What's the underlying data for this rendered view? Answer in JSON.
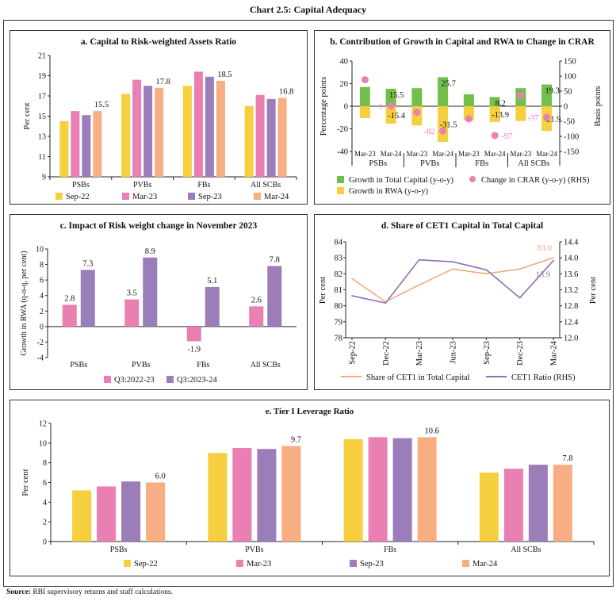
{
  "page": {
    "title": "Chart 2.5: Capital Adequacy",
    "source_label": "Source:",
    "source_text": " RBI supervisory returns and staff calculations."
  },
  "chart_data": [
    {
      "type": "bar",
      "title": "a. Capital to Risk-weighted Assets Ratio",
      "xlabel": "",
      "ylabel": "Per cent",
      "ylim": [
        9,
        21
      ],
      "yticks": [
        9,
        11,
        13,
        15,
        17,
        19,
        21
      ],
      "categories": [
        "PSBs",
        "PVBs",
        "FBs",
        "All SCBs"
      ],
      "legend_position": "bottom",
      "series": [
        {
          "name": "Sep-22",
          "color": "#f5cf3d",
          "values": [
            14.5,
            17.2,
            18.0,
            16.0
          ]
        },
        {
          "name": "Mar-23",
          "color": "#e97fb2",
          "values": [
            15.5,
            18.6,
            19.4,
            17.1
          ]
        },
        {
          "name": "Sep-23",
          "color": "#9b7db9",
          "values": [
            15.1,
            18.0,
            18.9,
            16.7
          ]
        },
        {
          "name": "Mar-24",
          "color": "#f7ae82",
          "values": [
            15.5,
            17.8,
            18.5,
            16.8
          ],
          "labels": [
            "15.5",
            "17.8",
            "18.5",
            "16.8"
          ]
        }
      ]
    },
    {
      "type": "bar",
      "title": "b. Contribution of Growth in Capital and RWA to Change in CRAR",
      "ylabel": "Percentage points",
      "y2label": "Basis points",
      "ylim": [
        -40,
        40
      ],
      "yticks": [
        -40,
        -20,
        0,
        20,
        40
      ],
      "y2lim": [
        -150,
        150
      ],
      "y2ticks": [
        -150,
        -100,
        -50,
        0,
        50,
        100,
        150
      ],
      "groups": [
        "PSBs",
        "PVBs",
        "FBs",
        "All SCBs"
      ],
      "periods": [
        "Mar-23",
        "Mar-24",
        "Mar-23",
        "Mar-24",
        "Mar-23",
        "Mar-24",
        "Mar-23",
        "Mar-24"
      ],
      "legend_position": "bottom",
      "series": [
        {
          "name": "Growth in Total Capital (y-o-y)",
          "kind": "bar",
          "color": "#72bf4b",
          "values": [
            17.0,
            15.5,
            16.0,
            25.7,
            10.5,
            8.2,
            16.0,
            19.3
          ],
          "labels": [
            null,
            "15.5",
            null,
            "25.7",
            null,
            "8.2",
            null,
            "19.3"
          ]
        },
        {
          "name": "Growth in RWA (y-o-y)",
          "kind": "bar",
          "color": "#f5cf3d",
          "values": [
            -10.5,
            -15.4,
            -17.0,
            -31.5,
            -12.5,
            -13.9,
            -13.0,
            -21.9
          ],
          "labels": [
            null,
            "-15.4",
            null,
            "-31.5",
            null,
            "-13.9",
            null,
            "-21.9"
          ]
        },
        {
          "name": "Change in CRAR (y-o-y) (RHS)",
          "kind": "scatter",
          "axis": "right",
          "color": "#e97fb2",
          "values": [
            88,
            1,
            -20,
            -82,
            -42,
            -97,
            36,
            -37
          ],
          "labels": [
            null,
            "1",
            null,
            "-82",
            null,
            "-97",
            null,
            "-37"
          ]
        }
      ]
    },
    {
      "type": "bar",
      "title": "c. Impact of Risk weight change in November 2023",
      "ylabel": "Growth in RWA (q-o-q, per cent)",
      "ylim": [
        -4,
        10
      ],
      "yticks": [
        -4,
        -2,
        0,
        2,
        4,
        6,
        8,
        10
      ],
      "categories": [
        "PSBs",
        "PVBs",
        "FBs",
        "All SCBs"
      ],
      "legend_position": "bottom",
      "series": [
        {
          "name": "Q3:2022-23",
          "color": "#e97fb2",
          "values": [
            2.8,
            3.5,
            -1.9,
            2.6
          ],
          "labels": [
            "2.8",
            "3.5",
            "-1.9",
            "2.6"
          ]
        },
        {
          "name": "Q3:2023-24",
          "color": "#9b7db9",
          "values": [
            7.3,
            8.9,
            5.1,
            7.8
          ],
          "labels": [
            "7.3",
            "8.9",
            "5.1",
            "7.8"
          ]
        }
      ]
    },
    {
      "type": "line",
      "title": "d. Share of CET1 Capital in Total Capital",
      "ylabel": "Per cent",
      "y2label": "Per cent",
      "ylim": [
        78,
        84
      ],
      "yticks": [
        78,
        79,
        80,
        81,
        82,
        83,
        84
      ],
      "y2lim": [
        12.0,
        14.4
      ],
      "y2ticks": [
        "12.0",
        "12.4",
        "12.8",
        "13.2",
        "13.6",
        "14.0",
        "14.4"
      ],
      "x": [
        "Sep-22",
        "Dec-22",
        "Mar-23",
        "Jun-23",
        "Sep-23",
        "Dec-23",
        "Mar-24"
      ],
      "legend_position": "bottom",
      "series": [
        {
          "name": "Share of CET1 in Total Capital",
          "axis": "left",
          "color": "#f4a97b",
          "values": [
            81.7,
            80.25,
            81.3,
            82.3,
            82.0,
            82.3,
            83.0
          ],
          "end_label": "83.0"
        },
        {
          "name": "CET1 Ratio (RHS)",
          "axis": "right",
          "color": "#8e72b2",
          "values": [
            13.05,
            12.87,
            13.95,
            13.9,
            13.7,
            13.0,
            13.93
          ],
          "end_label": "13.9"
        }
      ]
    },
    {
      "type": "bar",
      "title": "e. Tier I Leverage Ratio",
      "ylabel": "Per cent",
      "ylim": [
        0,
        12
      ],
      "yticks": [
        0,
        2,
        4,
        6,
        8,
        10,
        12
      ],
      "categories": [
        "PSBs",
        "PVBs",
        "FBs",
        "All SCBs"
      ],
      "legend_position": "bottom",
      "series": [
        {
          "name": "Sep-22",
          "color": "#f5cf3d",
          "values": [
            5.2,
            9.0,
            10.4,
            7.0
          ]
        },
        {
          "name": "Mar-23",
          "color": "#e97fb2",
          "values": [
            5.6,
            9.5,
            10.6,
            7.4
          ]
        },
        {
          "name": "Sep-23",
          "color": "#9b7db9",
          "values": [
            6.1,
            9.4,
            10.5,
            7.8
          ]
        },
        {
          "name": "Mar-24",
          "color": "#f7ae82",
          "values": [
            6.0,
            9.7,
            10.6,
            7.8
          ],
          "labels": [
            "6.0",
            "9.7",
            "10.6",
            "7.8"
          ]
        }
      ]
    }
  ]
}
